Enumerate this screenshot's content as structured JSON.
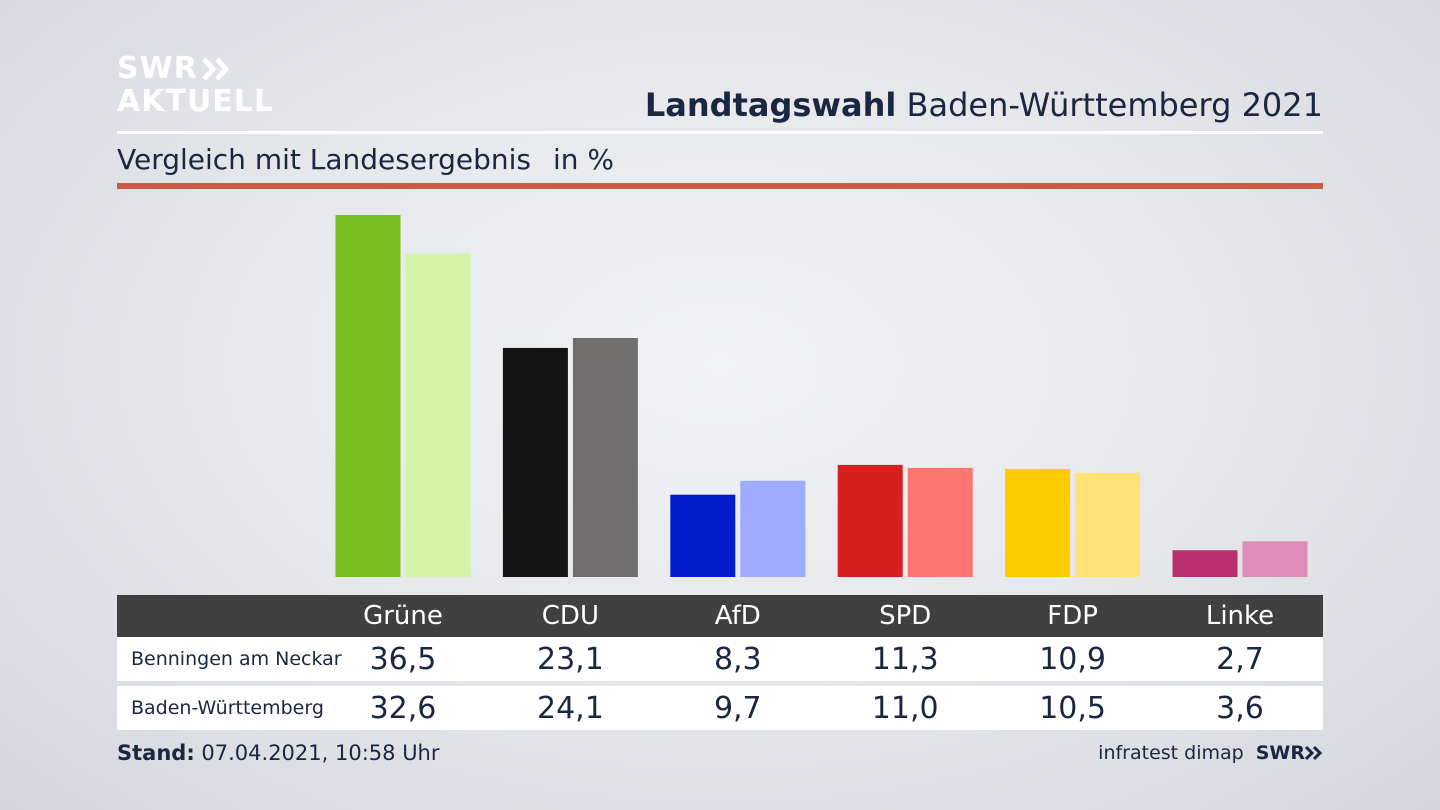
{
  "logo": {
    "line1": "SWR",
    "line2": "AKTUELL"
  },
  "header": {
    "title_bold": "Landtagswahl",
    "title_rest": "Baden-Württemberg 2021"
  },
  "subtitle": {
    "text": "Vergleich mit Landesergebnis",
    "unit": "in %"
  },
  "footer": {
    "stand_label": "Stand:",
    "stand_value": "07.04.2021, 10:58 Uhr",
    "source": "infratest dimap",
    "brand": "SWR"
  },
  "chart_data": {
    "type": "bar",
    "title": "",
    "categories": [
      "Grüne",
      "CDU",
      "AfD",
      "SPD",
      "FDP",
      "Linke"
    ],
    "series": [
      {
        "name": "Benningen am Neckar",
        "values": [
          36.5,
          23.1,
          8.3,
          11.3,
          10.9,
          2.7
        ]
      },
      {
        "name": "Baden-Württemberg",
        "values": [
          32.6,
          24.1,
          9.7,
          11.0,
          10.5,
          3.6
        ]
      }
    ],
    "display_values": [
      [
        "36,5",
        "23,1",
        "8,3",
        "11,3",
        "10,9",
        "2,7"
      ],
      [
        "32,6",
        "24,1",
        "9,7",
        "11,0",
        "10,5",
        "3,6"
      ]
    ],
    "colors": [
      [
        "#78be1e",
        "#d4f5a8"
      ],
      [
        "#141414",
        "#706f6e"
      ],
      [
        "#001ecc",
        "#9eabff"
      ],
      [
        "#d71f1f",
        "#ff7570"
      ],
      [
        "#ffcc00",
        "#ffe377"
      ],
      [
        "#b9306e",
        "#df8cb9"
      ]
    ],
    "ylim": [
      0,
      36.5
    ],
    "grid": false,
    "legend": "table-below"
  }
}
